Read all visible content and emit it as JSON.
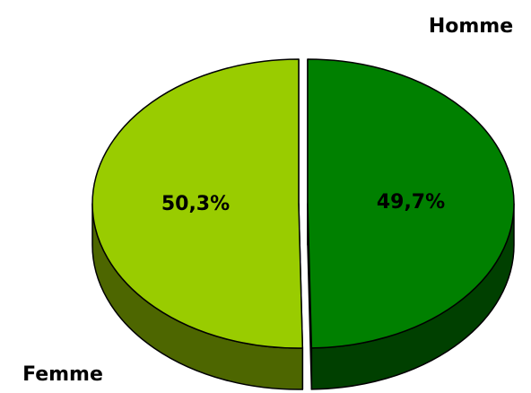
{
  "chart_data": {
    "type": "pie3d",
    "categories": [
      "Homme",
      "Femme"
    ],
    "values": [
      49.7,
      50.3
    ],
    "value_labels": [
      "49,7%",
      "50,3%"
    ],
    "colors": [
      "#008000",
      "#99cc00"
    ],
    "side_colors": [
      "#004000",
      "#4d6600"
    ]
  }
}
